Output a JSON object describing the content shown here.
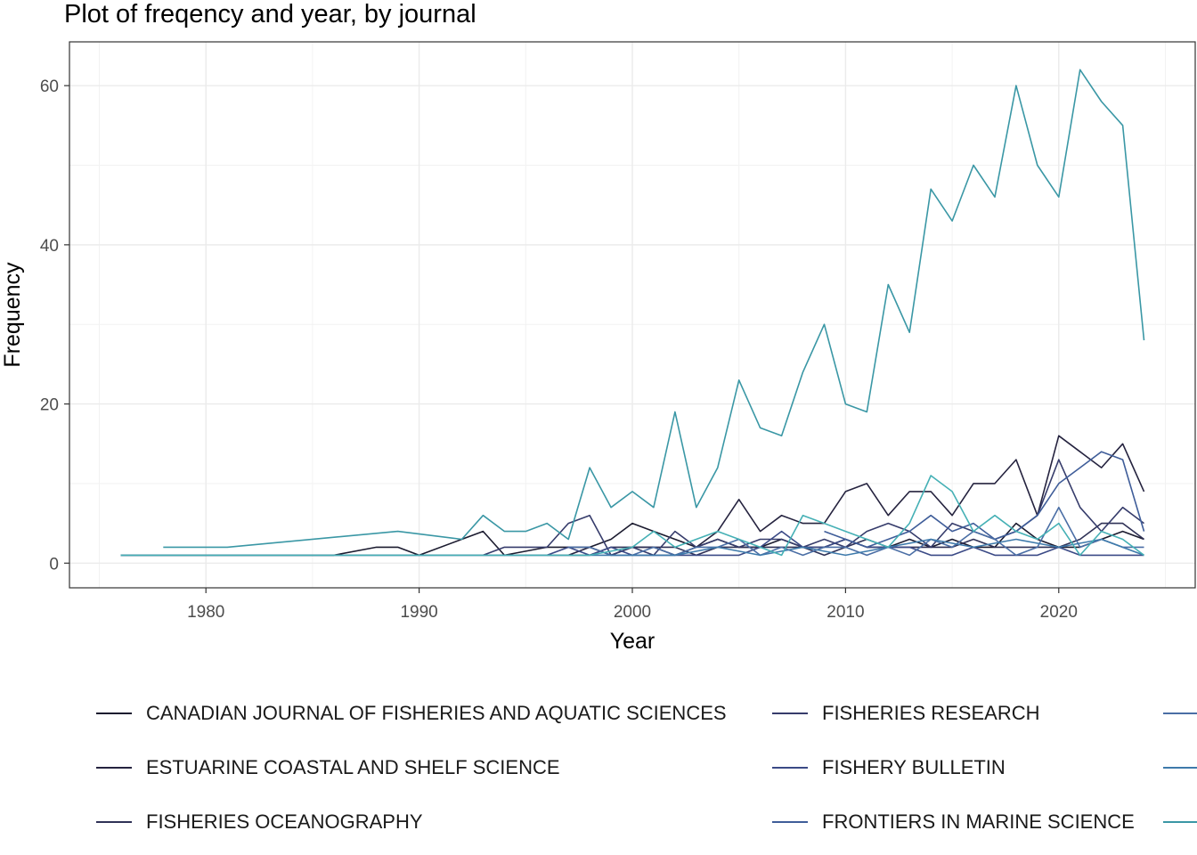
{
  "chart_data": {
    "type": "line",
    "title": "Plot of freqency and year, by journal",
    "xlabel": "Year",
    "ylabel": "Frequency",
    "xlim": [
      1973.7,
      1976.0
    ],
    "x_ticks": [
      1980,
      1990,
      2000,
      2010,
      2020
    ],
    "y_ticks": [
      0,
      20,
      40,
      60
    ],
    "grid": true,
    "legend_position": "bottom",
    "series": [
      {
        "name": "CANADIAN JOURNAL OF FISHERIES AND AQUATIC SCIENCES",
        "color": "#1b1b2f",
        "x": [
          1976,
          1986,
          1988,
          1989,
          1990,
          1992,
          1993,
          1994,
          1996,
          1997,
          1998,
          1999,
          2000,
          2001,
          2002,
          2003,
          2004,
          2005,
          2006,
          2007,
          2008,
          2009,
          2010,
          2011,
          2012,
          2013,
          2014,
          2015,
          2016,
          2017,
          2018,
          2019,
          2020,
          2021,
          2022,
          2023,
          2024
        ],
        "values": [
          1,
          1,
          2,
          2,
          1,
          3,
          4,
          1,
          2,
          2,
          2,
          3,
          5,
          4,
          3,
          2,
          3,
          2,
          2,
          3,
          2,
          2,
          3,
          2,
          2,
          3,
          2,
          3,
          2,
          2,
          5,
          3,
          2,
          2,
          3,
          4,
          3
        ]
      },
      {
        "name": "ESTUARINE COASTAL AND SHELF SCIENCE",
        "color": "#25233f",
        "x": [
          1997,
          1998,
          1999,
          2000,
          2001,
          2002,
          2003,
          2004,
          2005,
          2006,
          2007,
          2008,
          2009,
          2010,
          2011,
          2012,
          2013,
          2014,
          2015,
          2016,
          2017,
          2018,
          2019,
          2020,
          2021,
          2022,
          2023,
          2024
        ],
        "values": [
          1,
          2,
          1,
          2,
          2,
          1,
          2,
          4,
          8,
          4,
          6,
          5,
          5,
          9,
          10,
          6,
          9,
          9,
          6,
          10,
          10,
          13,
          6,
          16,
          14,
          12,
          15,
          9
        ]
      },
      {
        "name": "FISHERIES OCEANOGRAPHY",
        "color": "#2f3156",
        "x": [
          1996,
          1997,
          1998,
          1999,
          2000,
          2001,
          2002,
          2003,
          2004,
          2005,
          2006,
          2007,
          2008,
          2009,
          2010,
          2011,
          2012,
          2013,
          2014,
          2015,
          2016,
          2017,
          2018,
          2019,
          2020,
          2021,
          2022,
          2023,
          2024
        ],
        "values": [
          1,
          1,
          1,
          2,
          2,
          2,
          2,
          1,
          2,
          2,
          2,
          2,
          2,
          1,
          2,
          3,
          2,
          2,
          2,
          2,
          3,
          2,
          2,
          2,
          2,
          3,
          5,
          5,
          3
        ]
      },
      {
        "name": "FISHERIES RESEARCH",
        "color": "#363c6b",
        "x": [
          1993,
          1994,
          1995,
          1996,
          1997,
          1998,
          1999,
          2000,
          2001,
          2002,
          2003,
          2004,
          2005,
          2006,
          2007,
          2008,
          2009,
          2010,
          2011,
          2012,
          2013,
          2014,
          2015,
          2016,
          2017,
          2018,
          2019,
          2020,
          2021,
          2022,
          2023,
          2024
        ],
        "values": [
          1,
          2,
          2,
          2,
          5,
          6,
          1,
          2,
          1,
          4,
          2,
          3,
          2,
          3,
          3,
          2,
          3,
          2,
          4,
          5,
          4,
          2,
          5,
          4,
          3,
          4,
          6,
          13,
          7,
          4,
          7,
          5
        ]
      },
      {
        "name": "FISHERY BULLETIN",
        "color": "#3b4a86",
        "x": [
          1976,
          1990,
          1992,
          1996,
          1997,
          1998,
          1999,
          2000,
          2001,
          2002,
          2003,
          2004,
          2005,
          2006,
          2007,
          2008,
          2009,
          2010,
          2011,
          2012,
          2013,
          2014,
          2015,
          2016,
          2017,
          2018,
          2019,
          2020,
          2021,
          2022,
          2023,
          2024
        ],
        "values": [
          1,
          1,
          1,
          1,
          2,
          1,
          2,
          1,
          1,
          1,
          1,
          1,
          1,
          2,
          4,
          2,
          2,
          3,
          2,
          2,
          2,
          1,
          1,
          2,
          1,
          1,
          1,
          2,
          1,
          1,
          1,
          1
        ]
      },
      {
        "name": "FRONTIERS IN MARINE SCIENCE",
        "color": "#3f5d99",
        "x": [
          2009,
          2010,
          2011,
          2012,
          2013,
          2014,
          2015,
          2016,
          2017,
          2018,
          2019,
          2020,
          2021,
          2022,
          2023,
          2024
        ],
        "values": [
          4,
          3,
          2,
          3,
          4,
          6,
          4,
          5,
          3,
          4,
          6,
          10,
          12,
          14,
          13,
          4
        ]
      },
      {
        "name": "",
        "color": "#4a6ea5",
        "x": [
          1997,
          1998,
          1999,
          2000,
          2001,
          2002,
          2003,
          2004,
          2005,
          2006,
          2007,
          2008,
          2009,
          2010,
          2011,
          2012,
          2013,
          2014,
          2015,
          2016,
          2017,
          2018,
          2019,
          2020,
          2021,
          2022,
          2023,
          2024
        ],
        "values": [
          2,
          2,
          1,
          1,
          2,
          1,
          2,
          2,
          3,
          1,
          2,
          1,
          2,
          2,
          1,
          2,
          1,
          3,
          2,
          4,
          3,
          1,
          2,
          7,
          2,
          3,
          2,
          2
        ]
      },
      {
        "name": "",
        "color": "#3e7aab",
        "x": [
          1998,
          2000,
          2002,
          2004,
          2006,
          2008,
          2010,
          2012,
          2014,
          2016,
          2018,
          2020,
          2022,
          2024
        ],
        "values": [
          1,
          1,
          1,
          2,
          1,
          2,
          1,
          2,
          3,
          2,
          3,
          2,
          3,
          1
        ]
      },
      {
        "name": "",
        "color": "#3a97a5",
        "x": [
          1978,
          1981,
          1989,
          1992,
          1993,
          1994,
          1995,
          1996,
          1997,
          1998,
          1999,
          2000,
          2001,
          2002,
          2003,
          2004,
          2005,
          2006,
          2007,
          2008,
          2009,
          2010,
          2011,
          2012,
          2013,
          2014,
          2015,
          2016,
          2017,
          2018,
          2019,
          2020,
          2021,
          2022,
          2023,
          2024
        ],
        "values": [
          2,
          2,
          4,
          3,
          6,
          4,
          4,
          5,
          3,
          12,
          7,
          9,
          7,
          19,
          7,
          12,
          23,
          17,
          16,
          24,
          30,
          20,
          19,
          35,
          29,
          47,
          43,
          50,
          46,
          60,
          50,
          46,
          62,
          58,
          55,
          28
        ]
      },
      {
        "name": "",
        "color": "#45b0b5",
        "x": [
          1976,
          1988,
          1996,
          1998,
          2000,
          2001,
          2002,
          2003,
          2004,
          2005,
          2006,
          2007,
          2008,
          2009,
          2010,
          2011,
          2012,
          2013,
          2014,
          2015,
          2016,
          2017,
          2018,
          2019,
          2020,
          2021,
          2022,
          2023,
          2024
        ],
        "values": [
          1,
          1,
          1,
          1,
          2,
          4,
          2,
          3,
          4,
          3,
          2,
          1,
          6,
          5,
          4,
          3,
          2,
          5,
          11,
          9,
          4,
          6,
          4,
          3,
          5,
          1,
          4,
          3,
          1
        ]
      }
    ]
  }
}
